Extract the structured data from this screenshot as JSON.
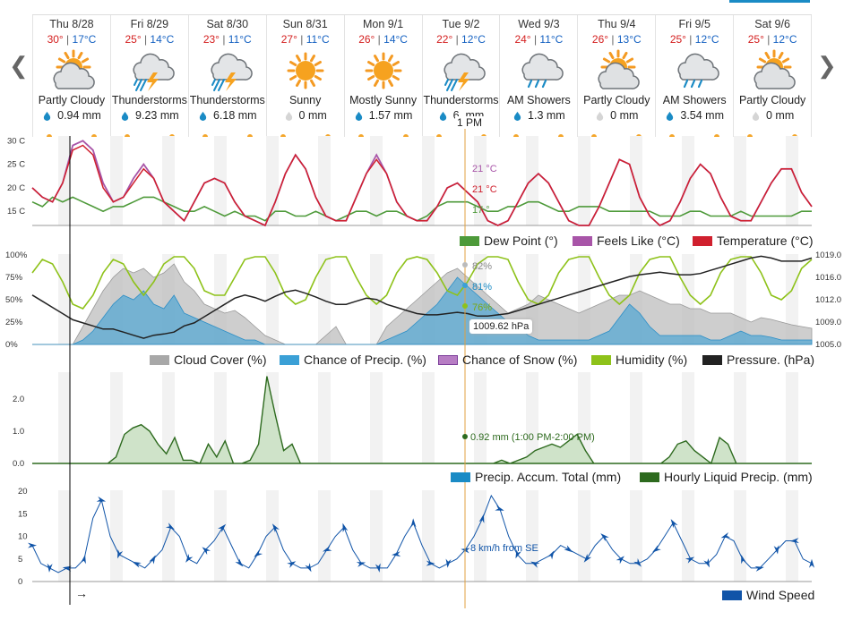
{
  "days": [
    {
      "date": "Thu 8/28",
      "hi": "30°",
      "lo": "17°C",
      "cond": "Partly Cloudy",
      "precip": "0.94 mm",
      "icon": "sun-cloud-icon",
      "drop": "blue"
    },
    {
      "date": "Fri 8/29",
      "hi": "25°",
      "lo": "14°C",
      "cond": "Thunderstorms",
      "precip": "9.23 mm",
      "icon": "thunderstorm-icon",
      "drop": "blue"
    },
    {
      "date": "Sat 8/30",
      "hi": "23°",
      "lo": "11°C",
      "cond": "Thunderstorms",
      "precip": "6.18 mm",
      "icon": "thunderstorm-icon",
      "drop": "blue"
    },
    {
      "date": "Sun 8/31",
      "hi": "27°",
      "lo": "11°C",
      "cond": "Sunny",
      "precip": "0 mm",
      "icon": "sun-icon",
      "drop": "grey"
    },
    {
      "date": "Mon 9/1",
      "hi": "26°",
      "lo": "14°C",
      "cond": "Mostly Sunny",
      "precip": "1.57 mm",
      "icon": "sun-icon",
      "drop": "blue"
    },
    {
      "date": "Tue 9/2",
      "hi": "22°",
      "lo": "12°C",
      "cond": "Thunderstorms",
      "precip": "6.   mm",
      "icon": "thunderstorm-icon",
      "drop": "blue"
    },
    {
      "date": "Wed 9/3",
      "hi": "24°",
      "lo": "11°C",
      "cond": "AM Showers",
      "precip": "1.3 mm",
      "icon": "showers-icon",
      "drop": "blue"
    },
    {
      "date": "Thu 9/4",
      "hi": "26°",
      "lo": "13°C",
      "cond": "Partly Cloudy",
      "precip": "0 mm",
      "icon": "sun-cloud-icon",
      "drop": "grey"
    },
    {
      "date": "Fri 9/5",
      "hi": "25°",
      "lo": "12°C",
      "cond": "AM Showers",
      "precip": "3.54 mm",
      "icon": "showers-icon",
      "drop": "blue"
    },
    {
      "date": "Sat 9/6",
      "hi": "25°",
      "lo": "12°C",
      "cond": "Partly Cloudy",
      "precip": "0 mm",
      "icon": "sun-cloud-icon",
      "drop": "grey"
    }
  ],
  "cursor": {
    "label": "1 PM",
    "temp": "21 °C",
    "feels": "21 °C",
    "dew": "17 °",
    "cloud": "82%",
    "precip_chance": "81%",
    "humidity": "76%",
    "pressure": "1009.62 hPa",
    "rain": "0.92 mm (1:00 PM-2:00 PM)",
    "wind": "8 km/h from SE"
  },
  "colors": {
    "temperature": "#d0202e",
    "feels_like": "#a855a8",
    "dew_point": "#4e9a3a",
    "cloud": "#a8a8a8",
    "precip_chance": "#3ba0d6",
    "snow": "#b77dc4",
    "humidity": "#8ec21a",
    "pressure": "#222222",
    "rain": "#2d6a1e",
    "accum": "#1a8bc5",
    "wind": "#1054a8"
  },
  "chart_data": [
    {
      "type": "line",
      "y_ticks": [
        "30 C",
        "25 C",
        "20 C",
        "15 C"
      ],
      "ylim": [
        12,
        31
      ],
      "series": [
        {
          "name": "Temperature (°C)",
          "legend": "Temperature (°C)",
          "values": [
            20,
            18,
            17,
            21,
            28,
            29,
            27,
            20,
            17,
            18,
            21,
            24,
            22,
            17,
            15,
            13,
            17,
            21,
            22,
            21,
            17,
            14,
            13,
            12,
            17,
            23,
            27,
            24,
            18,
            14,
            13,
            13,
            18,
            23,
            26,
            23,
            17,
            14,
            13,
            13,
            16,
            20,
            21,
            19,
            17,
            13,
            12,
            13,
            17,
            21,
            23,
            21,
            17,
            13,
            12,
            12,
            16,
            21,
            26,
            25,
            18,
            14,
            12,
            13,
            17,
            22,
            25,
            23,
            18,
            14,
            13,
            13,
            17,
            21,
            24,
            24,
            19,
            16
          ]
        },
        {
          "name": "Feels Like (°C)",
          "legend": "Feels Like (°C)",
          "values": [
            20,
            18,
            17,
            21,
            29,
            30,
            28,
            21,
            17,
            18,
            22,
            25,
            22,
            17,
            15,
            13,
            17,
            21,
            22,
            21,
            17,
            14,
            13,
            12,
            17,
            23,
            27,
            24,
            18,
            14,
            13,
            13,
            18,
            23,
            27,
            23,
            17,
            14,
            13,
            13,
            16,
            20,
            21,
            19,
            17,
            13,
            12,
            13,
            17,
            21,
            23,
            21,
            17,
            13,
            12,
            12,
            16,
            21,
            26,
            25,
            18,
            14,
            12,
            13,
            17,
            22,
            25,
            23,
            18,
            14,
            13,
            13,
            17,
            21,
            24,
            24,
            19,
            16
          ]
        },
        {
          "name": "Dew Point (°)",
          "legend": "Dew Point (°)",
          "values": [
            17,
            16,
            18,
            17,
            18,
            17,
            16,
            15,
            16,
            16,
            17,
            18,
            18,
            17,
            16,
            15,
            15,
            16,
            15,
            14,
            15,
            14,
            14,
            13,
            15,
            15,
            14,
            14,
            15,
            14,
            13,
            14,
            15,
            15,
            14,
            15,
            15,
            14,
            13,
            14,
            16,
            17,
            17,
            17,
            16,
            15,
            15,
            16,
            16,
            17,
            17,
            16,
            15,
            15,
            16,
            16,
            16,
            15,
            15,
            15,
            15,
            15,
            14,
            14,
            14,
            15,
            15,
            14,
            14,
            14,
            15,
            14,
            14,
            14,
            14,
            14,
            15,
            15
          ]
        }
      ]
    },
    {
      "type": "area",
      "y_ticks_left": [
        "100%",
        "75%",
        "50%",
        "25%",
        "0%"
      ],
      "y_ticks_right": [
        "1019.0",
        "1016.0",
        "1012.0",
        "1009.0",
        "1005.0"
      ],
      "series": [
        {
          "name": "Cloud Cover (%)",
          "legend": "Cloud Cover (%)",
          "values": [
            0,
            0,
            0,
            0,
            0,
            20,
            40,
            60,
            75,
            85,
            80,
            85,
            75,
            80,
            90,
            70,
            60,
            45,
            40,
            35,
            38,
            30,
            20,
            10,
            5,
            0,
            0,
            0,
            0,
            10,
            20,
            0,
            0,
            0,
            0,
            20,
            30,
            40,
            50,
            60,
            70,
            80,
            85,
            75,
            65,
            55,
            45,
            35,
            40,
            45,
            55,
            50,
            45,
            40,
            35,
            40,
            45,
            50,
            55,
            55,
            60,
            55,
            50,
            45,
            45,
            40,
            40,
            35,
            35,
            35,
            30,
            25,
            30,
            28,
            25,
            22,
            20,
            18
          ]
        },
        {
          "name": "Chance of Precip. (%)",
          "legend": "Chance of Precip. (%)",
          "values": [
            0,
            0,
            0,
            0,
            0,
            5,
            15,
            30,
            45,
            55,
            50,
            60,
            45,
            40,
            55,
            35,
            30,
            25,
            20,
            15,
            10,
            5,
            5,
            0,
            0,
            0,
            0,
            0,
            0,
            0,
            0,
            0,
            0,
            0,
            0,
            5,
            10,
            15,
            25,
            35,
            45,
            60,
            75,
            65,
            55,
            45,
            35,
            25,
            20,
            10,
            5,
            5,
            5,
            5,
            5,
            5,
            10,
            15,
            30,
            45,
            35,
            20,
            10,
            10,
            10,
            10,
            10,
            5,
            5,
            10,
            15,
            10,
            10,
            8,
            5,
            5,
            5,
            5
          ]
        },
        {
          "name": "Chance of Snow (%)",
          "legend": "Chance of Snow (%)",
          "values": [
            0,
            0,
            0,
            0,
            0,
            0,
            0,
            0,
            0,
            0,
            0,
            0,
            0,
            0,
            0,
            0,
            0,
            0,
            0,
            0,
            0,
            0,
            0,
            0,
            0,
            0,
            0,
            0,
            0,
            0,
            0,
            0,
            0,
            0,
            0,
            0,
            0,
            0,
            0,
            0,
            0,
            0,
            0,
            0,
            0,
            0,
            0,
            0,
            0,
            0,
            0,
            0,
            0,
            0,
            0,
            0,
            0,
            0,
            0,
            0,
            0,
            0,
            0,
            0,
            0,
            0,
            0,
            0,
            0,
            0,
            0,
            0,
            0,
            0,
            0,
            0,
            0,
            0
          ]
        },
        {
          "name": "Humidity (%)",
          "legend": "Humidity (%)",
          "values": [
            80,
            95,
            90,
            70,
            45,
            40,
            55,
            80,
            95,
            90,
            70,
            55,
            70,
            90,
            98,
            98,
            85,
            60,
            55,
            55,
            75,
            95,
            98,
            98,
            80,
            55,
            45,
            50,
            75,
            95,
            98,
            98,
            75,
            55,
            45,
            55,
            80,
            95,
            98,
            95,
            80,
            60,
            55,
            70,
            90,
            98,
            98,
            95,
            70,
            50,
            45,
            55,
            80,
            95,
            98,
            98,
            75,
            55,
            45,
            55,
            80,
            95,
            98,
            98,
            75,
            55,
            45,
            55,
            80,
            95,
            98,
            98,
            80,
            55,
            50,
            60,
            85,
            95
          ]
        },
        {
          "name": "Pressure. (hPa)",
          "legend": "Pressure. (hPa)",
          "values": [
            1013,
            1012,
            1011,
            1010,
            1009,
            1008.5,
            1008,
            1007.5,
            1007.5,
            1007,
            1006.5,
            1006,
            1006.5,
            1006.7,
            1007,
            1008,
            1008.5,
            1009.5,
            1010.5,
            1011.5,
            1012.5,
            1013,
            1012.6,
            1012,
            1012.8,
            1013.5,
            1013.8,
            1013.3,
            1012.7,
            1012,
            1011.5,
            1011.5,
            1012,
            1012.5,
            1012.3,
            1011.5,
            1011,
            1010.5,
            1010,
            1009.8,
            1009.8,
            1010,
            1010.2,
            1010,
            1009.6,
            1009.6,
            1009.8,
            1010,
            1010.5,
            1011,
            1011.5,
            1012,
            1012.5,
            1013,
            1013.5,
            1014,
            1014.5,
            1015,
            1015.5,
            1016,
            1016.3,
            1016.5,
            1016.7,
            1016.5,
            1016.3,
            1016.3,
            1016.5,
            1017,
            1017.5,
            1018,
            1018.5,
            1019,
            1019.3,
            1019,
            1018.5,
            1018.5,
            1018.5,
            1019
          ]
        }
      ]
    },
    {
      "type": "area",
      "y_ticks": [
        "2.0",
        "1.0",
        "0.0"
      ],
      "ylim": [
        0,
        2.8
      ],
      "series": [
        {
          "name": "Precip. Accum. Total (mm)",
          "legend": "Precip. Accum. Total (mm)"
        },
        {
          "name": "Hourly Liquid Precip. (mm)",
          "legend": "Hourly Liquid Precip. (mm)",
          "values": [
            0,
            0,
            0,
            0,
            0,
            0,
            0,
            0,
            0,
            0,
            0.2,
            0.9,
            1.1,
            1.2,
            1.0,
            0.6,
            0.3,
            0.8,
            0.1,
            0.1,
            0,
            0.6,
            0.2,
            0.7,
            0,
            0,
            0.1,
            0.6,
            2.7,
            1.5,
            0.4,
            0.6,
            0,
            0,
            0,
            0,
            0,
            0,
            0,
            0,
            0,
            0,
            0,
            0,
            0,
            0,
            0,
            0,
            0,
            0,
            0,
            0,
            0,
            0,
            0,
            0,
            0.1,
            0,
            0.1,
            0.2,
            0.4,
            0.5,
            0.6,
            0.5,
            0.7,
            0.9,
            0.4,
            0,
            0,
            0,
            0,
            0,
            0,
            0,
            0,
            0,
            0.2,
            0.6,
            0.7,
            0.4,
            0.2,
            0,
            0.8,
            0.6,
            0,
            0,
            0,
            0,
            0,
            0,
            0,
            0,
            0,
            0
          ]
        }
      ]
    },
    {
      "type": "line",
      "y_ticks": [
        "20",
        "15",
        "10",
        "5",
        "0"
      ],
      "ylim": [
        0,
        20
      ],
      "series": [
        {
          "name": "Wind Speed",
          "legend": "Wind Speed",
          "values": [
            8,
            4,
            3,
            2,
            3,
            3,
            5,
            14,
            18,
            10,
            6,
            5,
            4,
            3,
            5,
            7,
            12,
            10,
            5,
            4,
            7,
            9,
            12,
            8,
            4,
            3,
            6,
            10,
            12,
            7,
            4,
            3,
            3,
            4,
            7,
            10,
            12,
            7,
            4,
            3,
            3,
            3,
            6,
            10,
            13,
            8,
            4,
            3,
            4,
            5,
            7,
            10,
            14,
            19,
            16,
            10,
            6,
            4,
            4,
            5,
            6,
            8,
            7,
            6,
            5,
            8,
            10,
            7,
            5,
            4,
            4,
            5,
            7,
            10,
            13,
            9,
            5,
            4,
            4,
            6,
            10,
            9,
            5,
            3,
            3,
            5,
            7,
            9,
            9,
            5,
            4
          ]
        }
      ]
    }
  ],
  "arrow_glyph": "→"
}
